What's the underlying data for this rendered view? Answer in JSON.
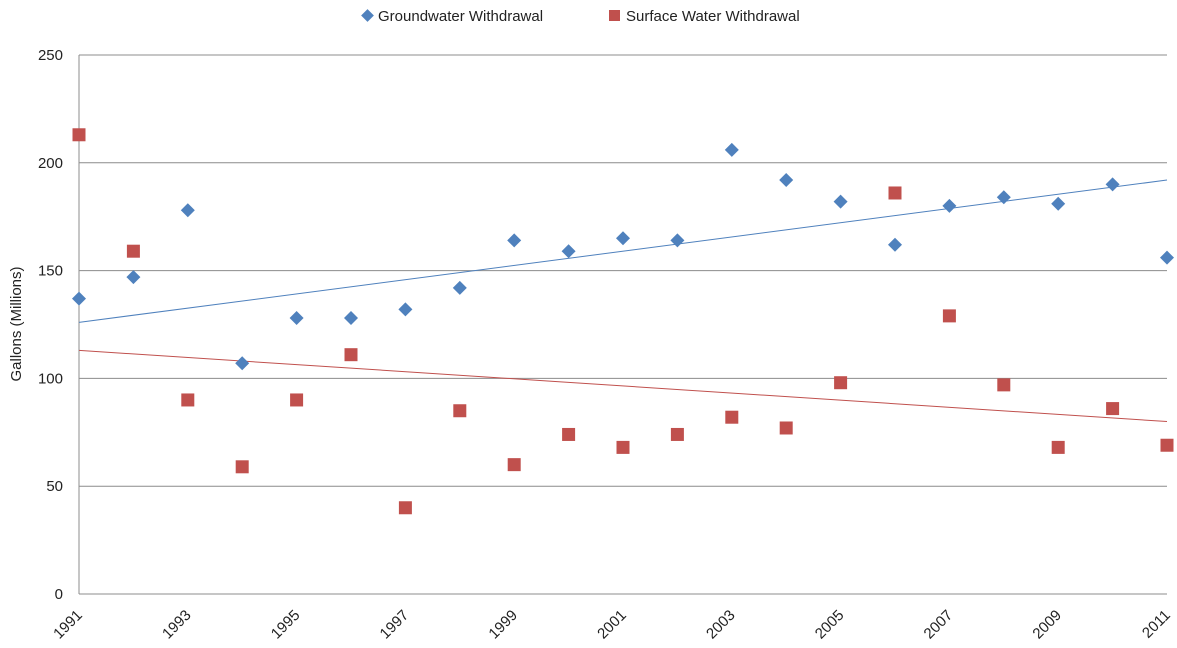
{
  "chart_data": {
    "type": "scatter",
    "title": "",
    "xlabel": "",
    "ylabel": "Gallons (Millions)",
    "xlim": [
      1991,
      2011
    ],
    "ylim": [
      0,
      250
    ],
    "yticks": [
      0,
      50,
      100,
      150,
      200,
      250
    ],
    "xticks": [
      1991,
      1993,
      1995,
      1997,
      1999,
      2001,
      2003,
      2005,
      2007,
      2009,
      2011
    ],
    "grid": "horizontal",
    "legend_position": "top",
    "series": [
      {
        "name": "Groundwater Withdrawal",
        "marker": "diamond",
        "color": "#4f81bd",
        "x": [
          1991,
          1992,
          1993,
          1994,
          1995,
          1996,
          1997,
          1998,
          1999,
          2000,
          2001,
          2002,
          2003,
          2004,
          2005,
          2006,
          2007,
          2008,
          2009,
          2010,
          2011
        ],
        "y": [
          137,
          147,
          178,
          107,
          128,
          128,
          132,
          142,
          164,
          159,
          165,
          164,
          206,
          192,
          182,
          162,
          180,
          184,
          181,
          190,
          156
        ],
        "trendline": {
          "start": [
            1991,
            126
          ],
          "end": [
            2011,
            192
          ]
        }
      },
      {
        "name": "Surface Water Withdrawal",
        "marker": "square",
        "color": "#c0504d",
        "x": [
          1991,
          1992,
          1993,
          1994,
          1995,
          1996,
          1997,
          1998,
          1999,
          2000,
          2001,
          2002,
          2003,
          2004,
          2005,
          2006,
          2007,
          2008,
          2009,
          2010,
          2011
        ],
        "y": [
          213,
          159,
          90,
          59,
          90,
          111,
          40,
          85,
          60,
          74,
          68,
          74,
          82,
          77,
          98,
          186,
          129,
          97,
          68,
          86,
          69
        ],
        "trendline": {
          "start": [
            1991,
            113
          ],
          "end": [
            2011,
            80
          ]
        }
      }
    ]
  }
}
